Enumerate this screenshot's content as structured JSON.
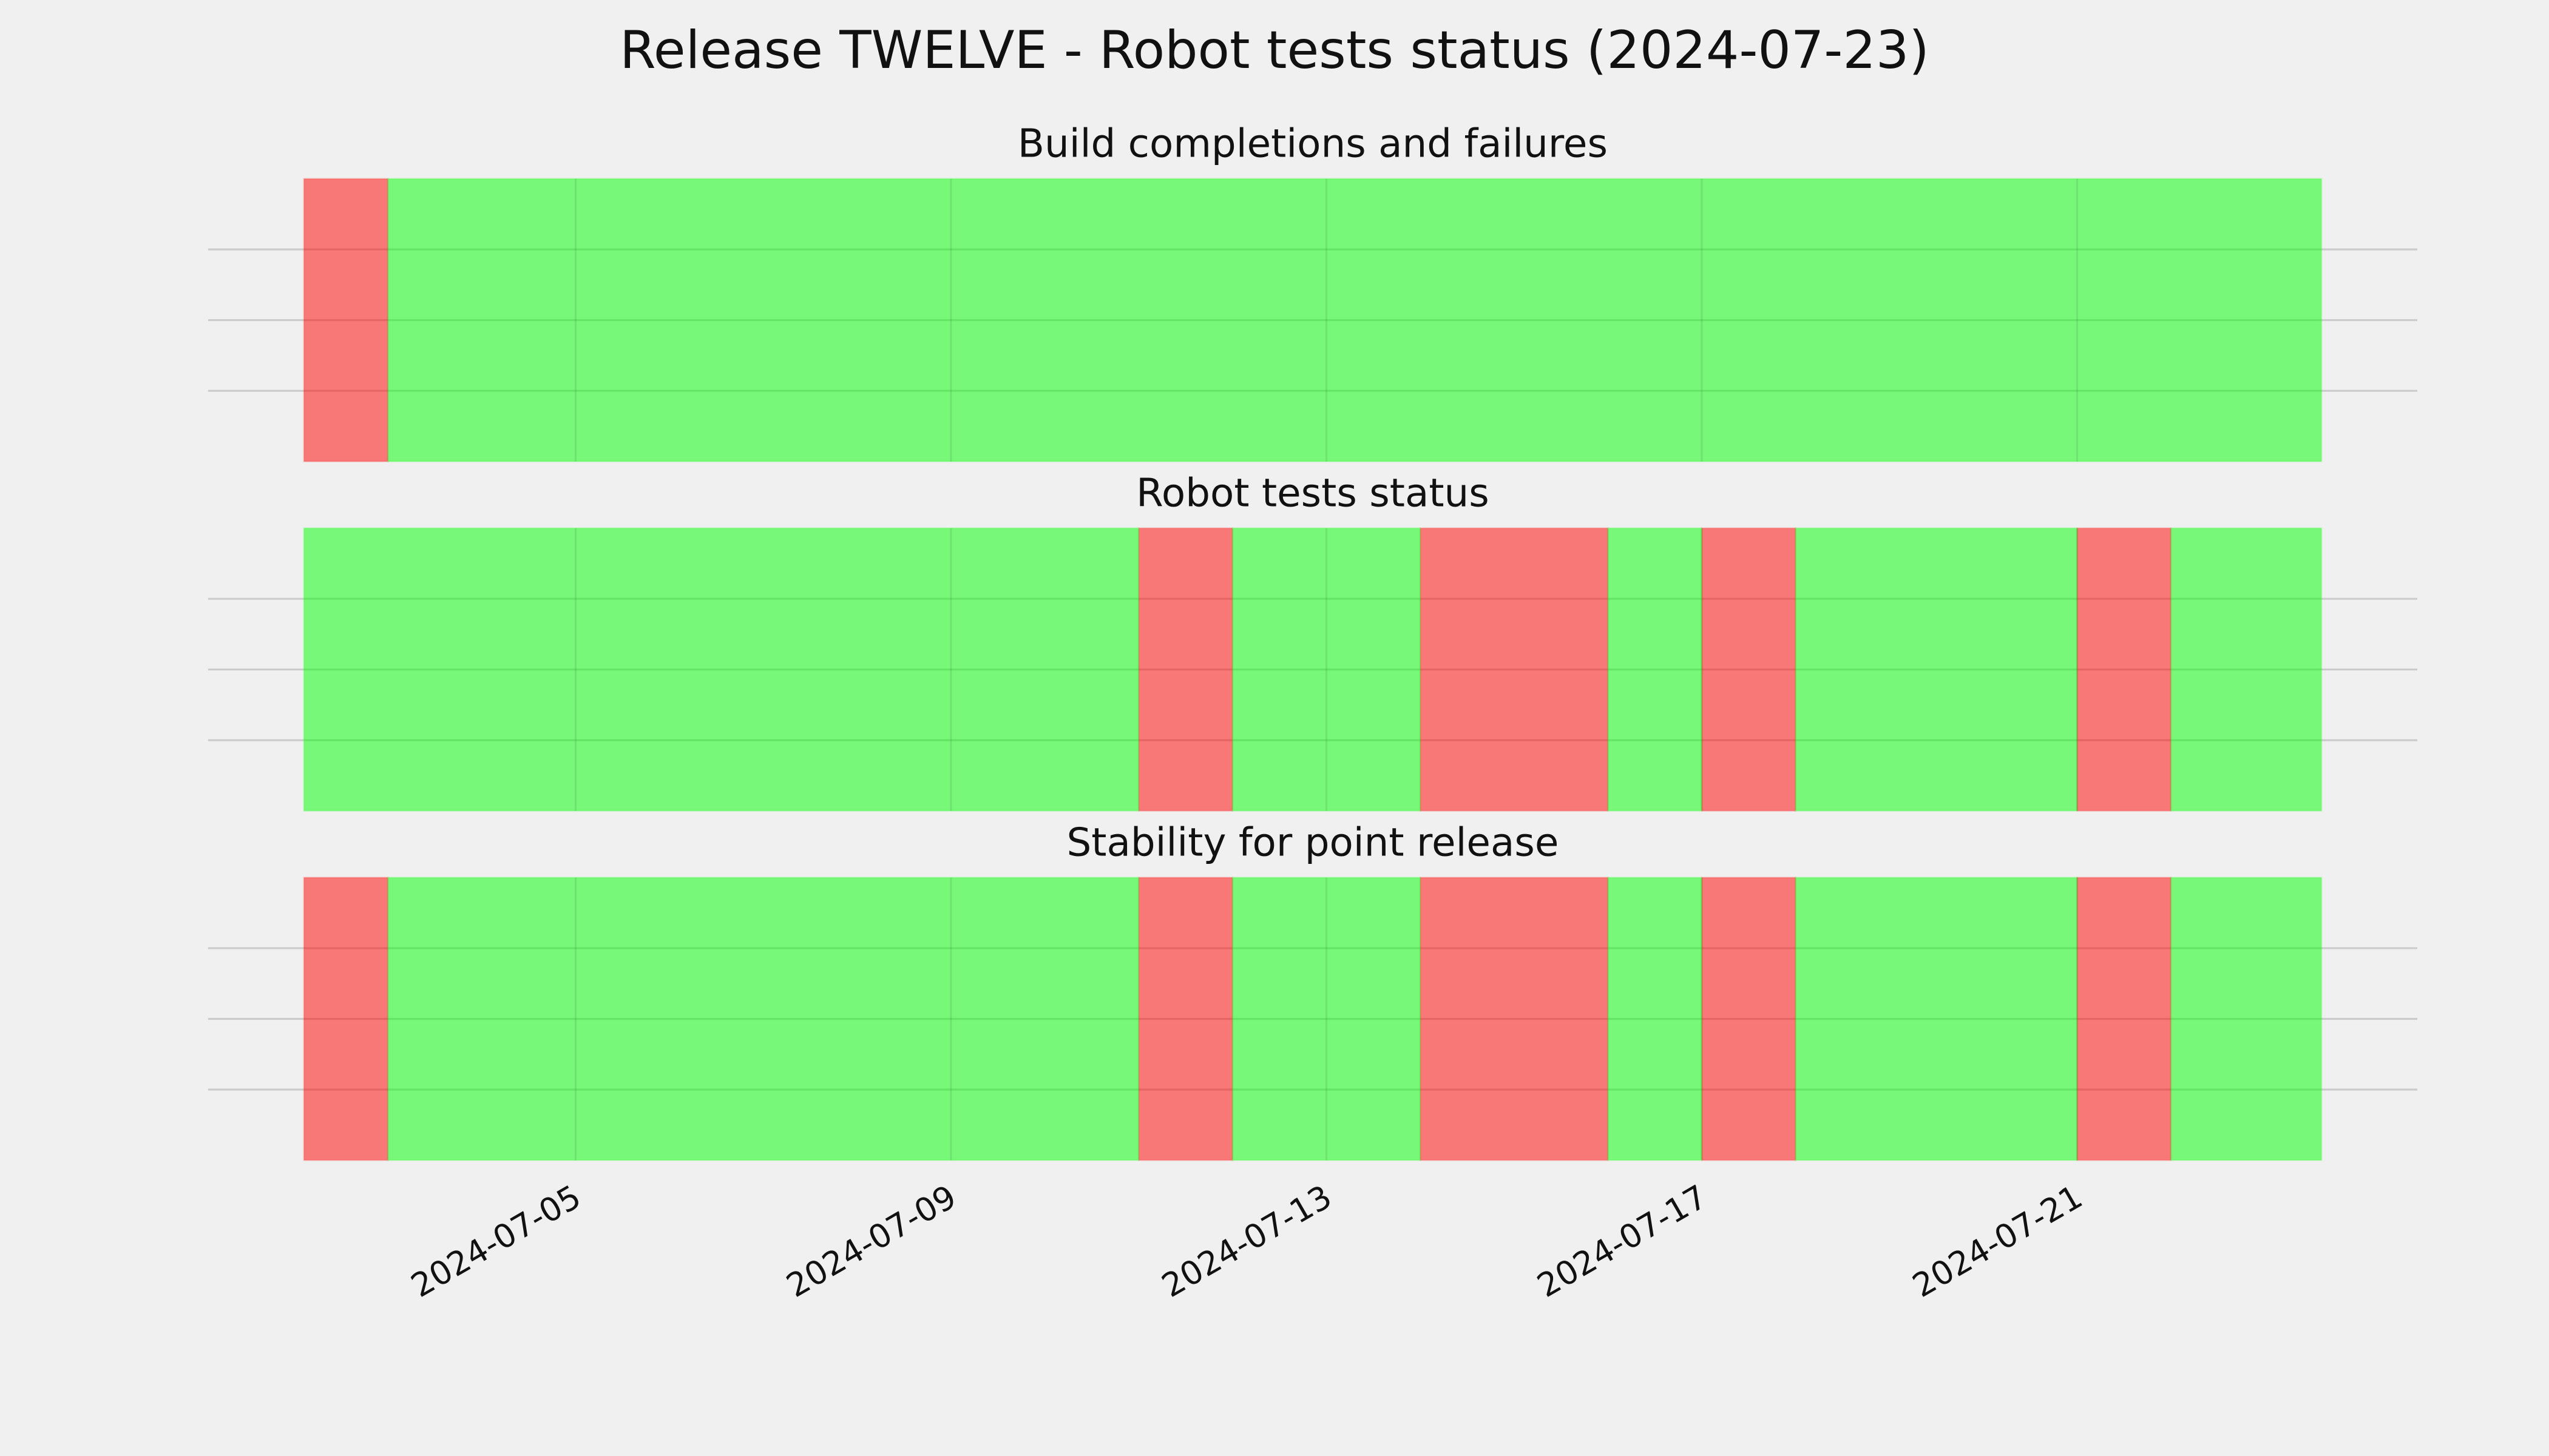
{
  "chart_data": {
    "type": "timeline",
    "title": "Release TWELVE - Robot tests status (2024-07-23)",
    "xlim": [
      "2024-07-01T02:00",
      "2024-07-24T15:00"
    ],
    "xticks": [
      "2024-07-05",
      "2024-07-09",
      "2024-07-13",
      "2024-07-17",
      "2024-07-21"
    ],
    "ylim": [
      0,
      1
    ],
    "yticks": [
      0.25,
      0.5,
      0.75
    ],
    "grid": true,
    "alpha": 0.5,
    "panels": [
      {
        "title": "Build completions and failures",
        "series": [
          {
            "color": "#ff0000",
            "spans": [
              [
                "2024-07-02T02:30",
                "2024-07-03"
              ]
            ]
          },
          {
            "color": "#00ff00",
            "spans": [
              [
                "2024-07-03",
                "2024-07-23T14:30"
              ]
            ]
          }
        ]
      },
      {
        "title": "Robot tests status",
        "series": [
          {
            "color": "#ff0000",
            "spans": [
              [
                "2024-07-11",
                "2024-07-12"
              ],
              [
                "2024-07-14",
                "2024-07-16"
              ],
              [
                "2024-07-17",
                "2024-07-18"
              ],
              [
                "2024-07-21",
                "2024-07-22"
              ]
            ]
          },
          {
            "color": "#00ff00",
            "spans": [
              [
                "2024-07-02T02:30",
                "2024-07-11"
              ],
              [
                "2024-07-12",
                "2024-07-14"
              ],
              [
                "2024-07-16",
                "2024-07-17"
              ],
              [
                "2024-07-18",
                "2024-07-21"
              ],
              [
                "2024-07-22",
                "2024-07-23T14:30"
              ]
            ]
          }
        ]
      },
      {
        "title": "Stability for point release",
        "series": [
          {
            "color": "#ff0000",
            "spans": [
              [
                "2024-07-02T02:30",
                "2024-07-03"
              ],
              [
                "2024-07-11",
                "2024-07-12"
              ],
              [
                "2024-07-14",
                "2024-07-16"
              ],
              [
                "2024-07-17",
                "2024-07-18"
              ],
              [
                "2024-07-21",
                "2024-07-22"
              ]
            ]
          },
          {
            "color": "#00ff00",
            "spans": [
              [
                "2024-07-03",
                "2024-07-11"
              ],
              [
                "2024-07-12",
                "2024-07-14"
              ],
              [
                "2024-07-16",
                "2024-07-17"
              ],
              [
                "2024-07-18",
                "2024-07-21"
              ],
              [
                "2024-07-22",
                "2024-07-23T14:30"
              ]
            ]
          }
        ]
      }
    ]
  }
}
